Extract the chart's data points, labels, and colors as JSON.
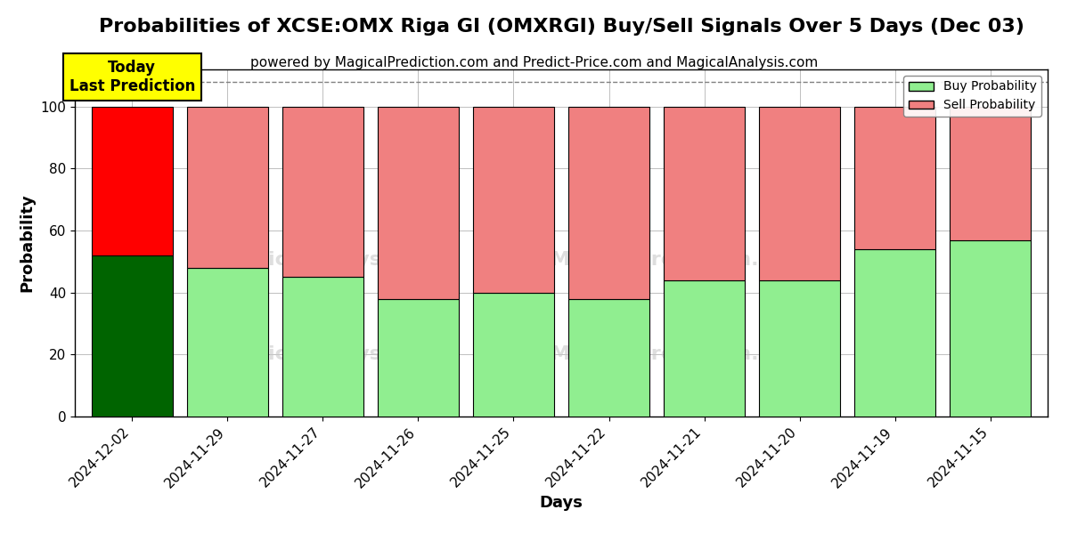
{
  "title": "Probabilities of XCSE:OMX Riga GI (OMXRGI) Buy/Sell Signals Over 5 Days (Dec 03)",
  "subtitle": "powered by MagicalPrediction.com and Predict-Price.com and MagicalAnalysis.com",
  "xlabel": "Days",
  "ylabel": "Probability",
  "categories": [
    "2024-12-02",
    "2024-11-29",
    "2024-11-27",
    "2024-11-26",
    "2024-11-25",
    "2024-11-22",
    "2024-11-21",
    "2024-11-20",
    "2024-11-19",
    "2024-11-15"
  ],
  "buy_values": [
    52,
    48,
    45,
    38,
    40,
    38,
    44,
    44,
    54,
    57
  ],
  "sell_values": [
    48,
    52,
    55,
    62,
    60,
    62,
    56,
    56,
    46,
    43
  ],
  "today_buy_color": "#006400",
  "today_sell_color": "#ff0000",
  "buy_color": "#90EE90",
  "sell_color": "#F08080",
  "today_label_bg": "#ffff00",
  "today_label_text": "Today\nLast Prediction",
  "legend_buy_label": "Buy Probability",
  "legend_sell_label": "Sell Probability",
  "ylim": [
    0,
    112
  ],
  "yticks": [
    0,
    20,
    40,
    60,
    80,
    100
  ],
  "dashed_line_y": 108,
  "title_fontsize": 16,
  "subtitle_fontsize": 11,
  "axis_label_fontsize": 13,
  "tick_fontsize": 11,
  "bar_width": 0.85
}
